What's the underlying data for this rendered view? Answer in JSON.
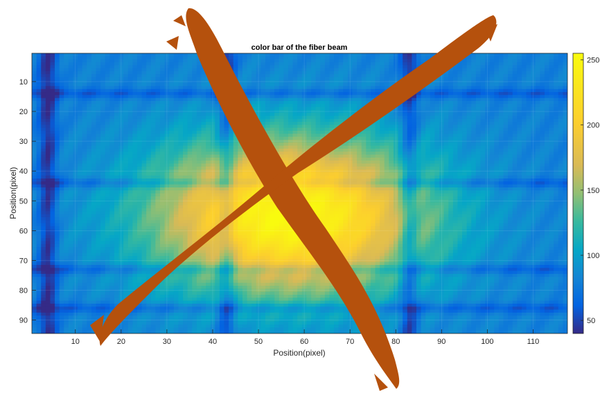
{
  "chart_data": {
    "type": "heatmap",
    "title": "color bar of the fiber beam",
    "xlabel": "Position(pixel)",
    "ylabel": "Position(pixel)",
    "xlim": [
      0.5,
      117.5
    ],
    "ylim": [
      0.5,
      94.5
    ],
    "y_reversed": true,
    "xticks": [
      10,
      20,
      30,
      40,
      50,
      60,
      70,
      80,
      90,
      100,
      110
    ],
    "yticks": [
      10,
      20,
      30,
      40,
      50,
      60,
      70,
      80,
      90
    ],
    "colormap": "parula",
    "colorbar": {
      "range": [
        40,
        255
      ],
      "ticks": [
        50,
        100,
        150,
        200,
        250
      ]
    },
    "grid": true,
    "features": {
      "center": [
        57,
        55
      ],
      "peak_value": 255,
      "background_value": 80,
      "dark_vertical_bands_x": [
        4,
        43,
        83
      ],
      "dark_horizontal_bands_y": [
        14,
        44,
        73,
        86
      ],
      "note_overlay": "large brown X mark drawn over the image"
    }
  },
  "colors": {
    "cross": "#b5510d",
    "axes": "#262626",
    "background": "#ffffff"
  }
}
